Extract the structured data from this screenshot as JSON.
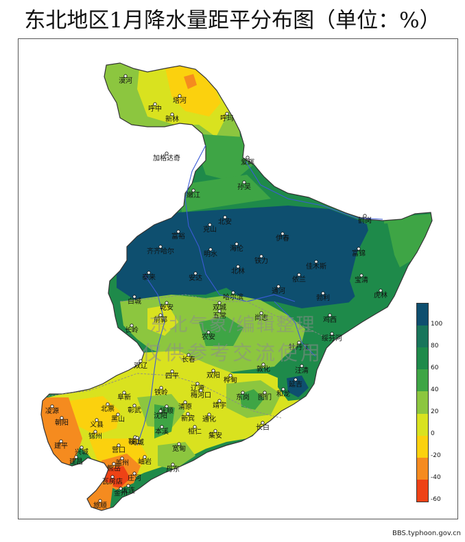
{
  "title": "东北地区1月降水量距平分布图（单位：%）",
  "watermark": {
    "line1": "东北气象/编辑整理",
    "line2": "仅供参考交流使用"
  },
  "legend": {
    "ticks": [
      "100",
      "80",
      "60",
      "40",
      "20",
      "0",
      "-20",
      "-40",
      "-60"
    ],
    "colors": [
      "#0e4f6f",
      "#18755b",
      "#1e8a4a",
      "#3ea545",
      "#8cc63f",
      "#d9e21f",
      "#fbd10e",
      "#f58b1f",
      "#ee4216"
    ]
  },
  "credit": "BBS.typhoon.gov.cn",
  "map": {
    "colors": {
      "c100": "#0e4f6f",
      "c80": "#18755b",
      "c60": "#1e8a4a",
      "c40": "#3ea545",
      "c20": "#8cc63f",
      "c0": "#d9e21f",
      "cm20": "#fbd10e",
      "cm40": "#f58b1f",
      "cm60": "#ee4216",
      "border": "#333333",
      "river": "#3b5bd6"
    },
    "stations": [
      {
        "name": "漠河"
      },
      {
        "name": "塔河"
      },
      {
        "name": "呼中"
      },
      {
        "name": "新林"
      },
      {
        "name": "呼玛"
      },
      {
        "name": "加格达奇"
      },
      {
        "name": "爱辉"
      },
      {
        "name": "孙吴"
      },
      {
        "name": "嫩江"
      },
      {
        "name": "北安"
      },
      {
        "name": "克山"
      },
      {
        "name": "富裕"
      },
      {
        "name": "齐齐哈尔"
      },
      {
        "name": "明水"
      },
      {
        "name": "海伦"
      },
      {
        "name": "铁力"
      },
      {
        "name": "伊春"
      },
      {
        "name": "鹤岗"
      },
      {
        "name": "佳木斯"
      },
      {
        "name": "富锦"
      },
      {
        "name": "泰来"
      },
      {
        "name": "安达"
      },
      {
        "name": "北林"
      },
      {
        "name": "通河"
      },
      {
        "name": "依兰"
      },
      {
        "name": "宝清"
      },
      {
        "name": "虎林"
      },
      {
        "name": "勃利"
      },
      {
        "name": "白城"
      },
      {
        "name": "哈尔滨"
      },
      {
        "name": "乾安"
      },
      {
        "name": "前郭"
      },
      {
        "name": "双城"
      },
      {
        "name": "五常"
      },
      {
        "name": "尚志"
      },
      {
        "name": "鸡西"
      },
      {
        "name": "长岭"
      },
      {
        "name": "农安"
      },
      {
        "name": "牡丹江"
      },
      {
        "name": "绥芬河"
      },
      {
        "name": "双辽"
      },
      {
        "name": "长春"
      },
      {
        "name": "敦化"
      },
      {
        "name": "汪清"
      },
      {
        "name": "四平"
      },
      {
        "name": "双阳"
      },
      {
        "name": "桦甸"
      },
      {
        "name": "延吉"
      },
      {
        "name": "阜新"
      },
      {
        "name": "辽源"
      },
      {
        "name": "梅河口"
      },
      {
        "name": "和龙"
      },
      {
        "name": "图们"
      },
      {
        "name": "北票"
      },
      {
        "name": "彰武"
      },
      {
        "name": "铁岭"
      },
      {
        "name": "抚顺"
      },
      {
        "name": "清原"
      },
      {
        "name": "靖宇"
      },
      {
        "name": "东岗"
      },
      {
        "name": "朝阳"
      },
      {
        "name": "义县"
      },
      {
        "name": "黑山"
      },
      {
        "name": "沈阳"
      },
      {
        "name": "新宾"
      },
      {
        "name": "通化"
      },
      {
        "name": "建平"
      },
      {
        "name": "锦州"
      },
      {
        "name": "鞍山"
      },
      {
        "name": "本溪"
      },
      {
        "name": "桓仁"
      },
      {
        "name": "集安"
      },
      {
        "name": "长白"
      },
      {
        "name": "凌源"
      },
      {
        "name": "兴城"
      },
      {
        "name": "营口"
      },
      {
        "name": "海城"
      },
      {
        "name": "宽甸"
      },
      {
        "name": "建昌"
      },
      {
        "name": "盖州"
      },
      {
        "name": "岫岩"
      },
      {
        "name": "丹东"
      },
      {
        "name": "熊岳"
      },
      {
        "name": "庄河"
      },
      {
        "name": "瓦房店"
      },
      {
        "name": "金州"
      },
      {
        "name": "大连"
      },
      {
        "name": "旅顺"
      }
    ]
  }
}
